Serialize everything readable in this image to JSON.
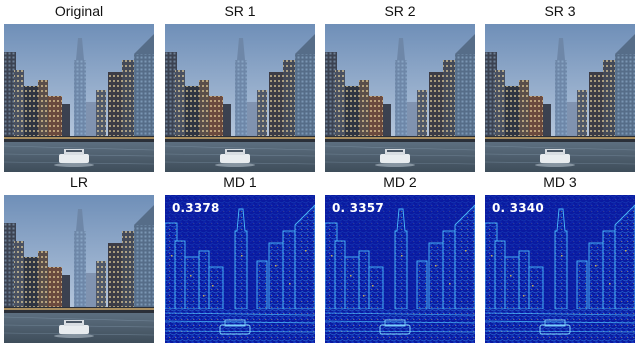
{
  "figure": {
    "panels": [
      {
        "id": "original",
        "label": "Original",
        "kind": "photo"
      },
      {
        "id": "sr1",
        "label": "SR 1",
        "kind": "photo"
      },
      {
        "id": "sr2",
        "label": "SR 2",
        "kind": "photo"
      },
      {
        "id": "sr3",
        "label": "SR 3",
        "kind": "photo"
      },
      {
        "id": "lr",
        "label": "LR",
        "kind": "photo"
      },
      {
        "id": "md1",
        "label": "MD 1",
        "kind": "diffmap",
        "score": "0.3378"
      },
      {
        "id": "md2",
        "label": "MD 2",
        "kind": "diffmap",
        "score": "0. 3357"
      },
      {
        "id": "md3",
        "label": "MD 3",
        "kind": "diffmap",
        "score": "0. 3340"
      }
    ],
    "colors": {
      "sky_top": "#6f8fb8",
      "sky_bottom": "#c9d6e6",
      "water": "#4f6070",
      "boat": "#e8ecef",
      "diff_bg": "#0a1aa0",
      "diff_edge": "#3fb0ff",
      "diff_hot": "#ffd23a"
    }
  }
}
